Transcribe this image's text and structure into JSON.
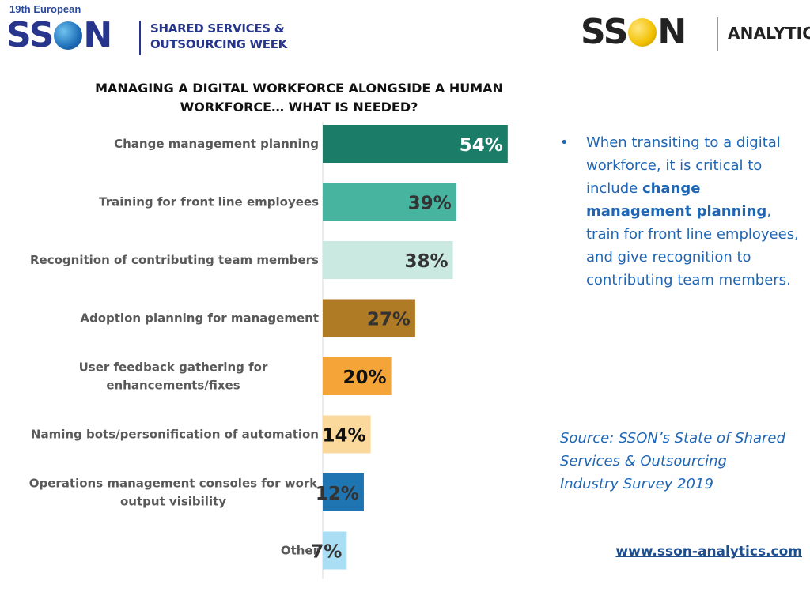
{
  "header": {
    "event_kicker": "19th European",
    "brand_left": "SSON",
    "event_name_lines": [
      "SHARED SERVICES &",
      "OUTSOURCING WEEK"
    ],
    "brand_right": "SSON",
    "brand_right_suffix": "ANALYTICS"
  },
  "insight": {
    "bullet": "•",
    "part1": "When transiting to a digital workforce, it is critical to include ",
    "bold": "change management planning",
    "part2": ", train for front line employees, and give recognition to contributing team members."
  },
  "source_lines": [
    "Source: SSON’s State of Shared",
    "Services & Outsourcing",
    "Industry Survey 2019"
  ],
  "website": "www.sson-analytics.com",
  "chart_data": {
    "type": "bar",
    "orientation": "horizontal",
    "title": "MANAGING A DIGITAL WORKFORCE ALONGSIDE A HUMAN WORKFORCE… WHAT IS NEEDED?",
    "title_lines": [
      "MANAGING A DIGITAL WORKFORCE ALONGSIDE A HUMAN",
      "WORKFORCE… WHAT IS NEEDED?"
    ],
    "categories": [
      [
        "Change management planning"
      ],
      [
        "Training for front line employees"
      ],
      [
        "Recognition of contributing team members"
      ],
      [
        "Adoption planning for management"
      ],
      [
        "User feedback gathering for",
        "enhancements/fixes"
      ],
      [
        "Naming bots/personification of automation"
      ],
      [
        "Operations management consoles for work",
        "output visibility"
      ],
      [
        "Other"
      ]
    ],
    "values": [
      54,
      39,
      38,
      27,
      20,
      14,
      12,
      7
    ],
    "value_labels": [
      "54%",
      "39%",
      "38%",
      "27%",
      "20%",
      "14%",
      "12%",
      "7%"
    ],
    "unit": "%",
    "colors": [
      "#1b7d68",
      "#47b4a0",
      "#c9e9e1",
      "#b07b25",
      "#f5a437",
      "#fbd99c",
      "#1f75b1",
      "#a9def5"
    ],
    "label_colors": [
      "#ffffff",
      "#333333",
      "#333333",
      "#333333",
      "#111111",
      "#111111",
      "#333333",
      "#333333"
    ],
    "grid": false,
    "legend": "none"
  }
}
